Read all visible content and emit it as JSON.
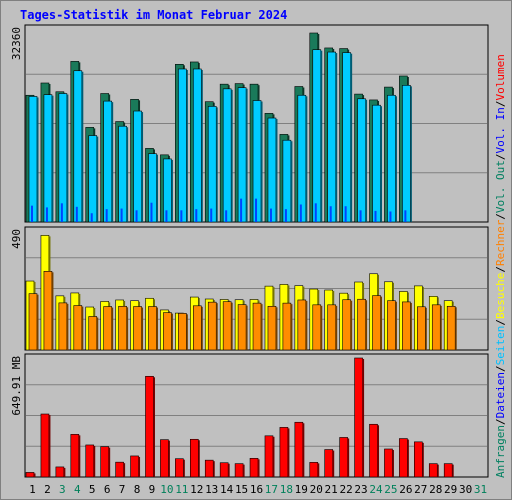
{
  "chart_data": {
    "type": "bar",
    "title": "Tages-Statistik im Monat Februar 2024",
    "days": [
      "1",
      "2",
      "3",
      "4",
      "5",
      "6",
      "7",
      "8",
      "9",
      "10",
      "11",
      "12",
      "13",
      "14",
      "15",
      "16",
      "17",
      "18",
      "19",
      "20",
      "21",
      "22",
      "23",
      "24",
      "25",
      "26",
      "27",
      "28",
      "29",
      "30",
      "31"
    ],
    "weekend_days": [
      "3",
      "4",
      "10",
      "11",
      "17",
      "18",
      "24",
      "25",
      "31"
    ],
    "panels": [
      {
        "name": "top",
        "max_label": "32360",
        "ymax": 32360,
        "series": [
          {
            "name": "Anfragen",
            "color": "#1a7a5a",
            "values": [
              21700,
              23800,
              22300,
              27500,
              16200,
              22000,
              17200,
              21000,
              12600,
              11500,
              27000,
              27400,
              20600,
              23600,
              23700,
              23600,
              18600,
              15000,
              23200,
              32360,
              29800,
              29700,
              21900,
              20900,
              23100,
              25000
            ]
          },
          {
            "name": "Dateien",
            "color": "#00ccff",
            "values": [
              21500,
              21800,
              22000,
              25900,
              14800,
              20700,
              16400,
              19000,
              11700,
              10800,
              26200,
              26200,
              19800,
              22800,
              23000,
              20800,
              17800,
              14000,
              21700,
              29500,
              29100,
              29000,
              21100,
              20000,
              21700,
              23400
            ]
          },
          {
            "name": "Seiten",
            "color": "#00aaff",
            "values": [
              2800,
              2500,
              3200,
              2600,
              1500,
              2200,
              2300,
              2000,
              3300,
              2000,
              2000,
              2200,
              2300,
              2000,
              4000,
              4000,
              2300,
              2200,
              3000,
              3200,
              2700,
              2700,
              2000,
              1900,
              1800,
              2000
            ]
          }
        ]
      },
      {
        "name": "middle",
        "max_label": "490",
        "ymax": 490,
        "series": [
          {
            "name": "Besuche",
            "color": "#ffff00",
            "values": [
              284,
              472,
              223,
              235,
              177,
              200,
              206,
              203,
              213,
              165,
              152,
              218,
              210,
              208,
              207,
              208,
              263,
              270,
              265,
              251,
              247,
              234,
              280,
              314,
              281,
              241,
              264,
              221,
              203
            ]
          },
          {
            "name": "Rechner",
            "color": "#ff8c00",
            "values": [
              232,
              324,
              194,
              183,
              138,
              179,
              180,
              179,
              179,
              154,
              151,
              182,
              197,
              199,
              187,
              193,
              180,
              193,
              206,
              186,
              186,
              207,
              209,
              224,
              203,
              198,
              178,
              186,
              180
            ]
          }
        ]
      },
      {
        "name": "bottom",
        "max_label": "649.91 MB",
        "ymax": 649.91,
        "series": [
          {
            "name": "Volumen",
            "color": "#ff0000",
            "values": [
              25,
              344,
              55,
              233,
              175,
              166,
              81,
              115,
              550,
              204,
              100,
              206,
              92,
              78,
              73,
              102,
              225,
              271,
              299,
              80,
              150,
              216,
              649.91,
              288,
              153,
              210,
              192,
              73,
              73
            ]
          }
        ]
      }
    ],
    "legend_right": [
      {
        "text": "Anfragen",
        "color": "#008060"
      },
      {
        "text": "/",
        "color": "#000000"
      },
      {
        "text": "Dateien",
        "color": "#0000ff"
      },
      {
        "text": "/",
        "color": "#000000"
      },
      {
        "text": "Seiten",
        "color": "#00c0ff"
      },
      {
        "text": "/",
        "color": "#000000"
      },
      {
        "text": "Besuche",
        "color": "#ffff00"
      },
      {
        "text": "/",
        "color": "#000000"
      },
      {
        "text": "Rechner",
        "color": "#ff8000"
      },
      {
        "text": "/",
        "color": "#000000"
      },
      {
        "text": "Vol. Out",
        "color": "#008060"
      },
      {
        "text": "/",
        "color": "#000000"
      },
      {
        "text": "Vol. In",
        "color": "#0000ff"
      },
      {
        "text": "/",
        "color": "#000000"
      },
      {
        "text": "Volumen",
        "color": "#ff0000"
      }
    ]
  }
}
